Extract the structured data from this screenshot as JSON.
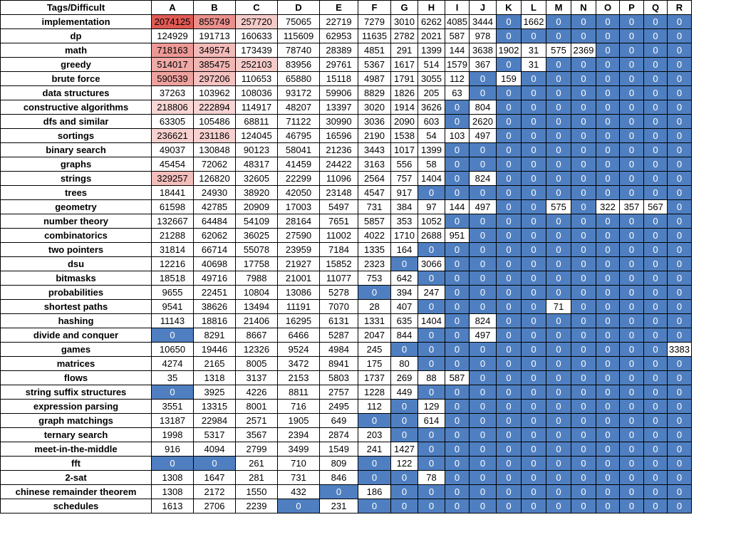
{
  "chart_data": {
    "type": "heatmap",
    "corner_header": "Tags/Difficult",
    "columns": [
      "A",
      "B",
      "C",
      "D",
      "E",
      "F",
      "G",
      "H",
      "I",
      "J",
      "K",
      "L",
      "M",
      "N",
      "O",
      "P",
      "Q",
      "R"
    ],
    "rows": [
      {
        "tag": "implementation",
        "values": [
          2074125,
          855749,
          257720,
          75065,
          22719,
          7279,
          3010,
          6262,
          4085,
          3444,
          0,
          1662,
          0,
          0,
          0,
          0,
          0,
          0
        ]
      },
      {
        "tag": "dp",
        "values": [
          124929,
          191713,
          160633,
          115609,
          62953,
          11635,
          2782,
          2021,
          587,
          978,
          0,
          0,
          0,
          0,
          0,
          0,
          0,
          0
        ]
      },
      {
        "tag": "math",
        "values": [
          718163,
          349574,
          173439,
          78740,
          28389,
          4851,
          291,
          1399,
          144,
          3638,
          1902,
          31,
          575,
          2369,
          0,
          0,
          0,
          0
        ]
      },
      {
        "tag": "greedy",
        "values": [
          514017,
          385475,
          252103,
          83956,
          29761,
          5367,
          1617,
          514,
          1579,
          367,
          0,
          31,
          0,
          0,
          0,
          0,
          0,
          0
        ]
      },
      {
        "tag": "brute force",
        "values": [
          590539,
          297206,
          110653,
          65880,
          15118,
          4987,
          1791,
          3055,
          112,
          0,
          159,
          0,
          0,
          0,
          0,
          0,
          0,
          0
        ]
      },
      {
        "tag": "data structures",
        "values": [
          37263,
          103962,
          108036,
          93172,
          59906,
          8829,
          1826,
          205,
          63,
          0,
          0,
          0,
          0,
          0,
          0,
          0,
          0,
          0
        ]
      },
      {
        "tag": "constructive algorithms",
        "values": [
          218806,
          222894,
          114917,
          48207,
          13397,
          3020,
          1914,
          3626,
          0,
          804,
          0,
          0,
          0,
          0,
          0,
          0,
          0,
          0
        ]
      },
      {
        "tag": "dfs and similar",
        "values": [
          63305,
          105486,
          68811,
          71122,
          30990,
          3036,
          2090,
          603,
          0,
          2620,
          0,
          0,
          0,
          0,
          0,
          0,
          0,
          0
        ]
      },
      {
        "tag": "sortings",
        "values": [
          236621,
          231186,
          124045,
          46795,
          16596,
          2190,
          1538,
          54,
          103,
          497,
          0,
          0,
          0,
          0,
          0,
          0,
          0,
          0
        ]
      },
      {
        "tag": "binary search",
        "values": [
          49037,
          130848,
          90123,
          58041,
          21236,
          3443,
          1017,
          1399,
          0,
          0,
          0,
          0,
          0,
          0,
          0,
          0,
          0,
          0
        ]
      },
      {
        "tag": "graphs",
        "values": [
          45454,
          72062,
          48317,
          41459,
          24422,
          3163,
          556,
          58,
          0,
          0,
          0,
          0,
          0,
          0,
          0,
          0,
          0,
          0
        ]
      },
      {
        "tag": "strings",
        "values": [
          329257,
          126820,
          32605,
          22299,
          11096,
          2564,
          757,
          1404,
          0,
          824,
          0,
          0,
          0,
          0,
          0,
          0,
          0,
          0
        ]
      },
      {
        "tag": "trees",
        "values": [
          18441,
          24930,
          38920,
          42050,
          23148,
          4547,
          917,
          0,
          0,
          0,
          0,
          0,
          0,
          0,
          0,
          0,
          0,
          0
        ]
      },
      {
        "tag": "geometry",
        "values": [
          61598,
          42785,
          20909,
          17003,
          5497,
          731,
          384,
          97,
          144,
          497,
          0,
          0,
          575,
          0,
          322,
          357,
          567,
          0
        ]
      },
      {
        "tag": "number theory",
        "values": [
          132667,
          64484,
          54109,
          28164,
          7651,
          5857,
          353,
          1052,
          0,
          0,
          0,
          0,
          0,
          0,
          0,
          0,
          0,
          0
        ]
      },
      {
        "tag": "combinatorics",
        "values": [
          21288,
          62062,
          36025,
          27590,
          11002,
          4022,
          1710,
          2688,
          951,
          0,
          0,
          0,
          0,
          0,
          0,
          0,
          0,
          0
        ]
      },
      {
        "tag": "two pointers",
        "values": [
          31814,
          66714,
          55078,
          23959,
          7184,
          1335,
          164,
          0,
          0,
          0,
          0,
          0,
          0,
          0,
          0,
          0,
          0,
          0
        ]
      },
      {
        "tag": "dsu",
        "values": [
          12216,
          40698,
          17758,
          21927,
          15852,
          2323,
          0,
          3066,
          0,
          0,
          0,
          0,
          0,
          0,
          0,
          0,
          0,
          0
        ]
      },
      {
        "tag": "bitmasks",
        "values": [
          18518,
          49716,
          7988,
          21001,
          11077,
          753,
          642,
          0,
          0,
          0,
          0,
          0,
          0,
          0,
          0,
          0,
          0,
          0
        ]
      },
      {
        "tag": "probabilities",
        "values": [
          9655,
          22451,
          10804,
          13086,
          5278,
          0,
          394,
          247,
          0,
          0,
          0,
          0,
          0,
          0,
          0,
          0,
          0,
          0
        ]
      },
      {
        "tag": "shortest paths",
        "values": [
          9541,
          38626,
          13494,
          11191,
          7070,
          28,
          407,
          0,
          0,
          0,
          0,
          0,
          71,
          0,
          0,
          0,
          0,
          0
        ]
      },
      {
        "tag": "hashing",
        "values": [
          11143,
          18816,
          21406,
          16295,
          6131,
          1331,
          635,
          1404,
          0,
          824,
          0,
          0,
          0,
          0,
          0,
          0,
          0,
          0
        ]
      },
      {
        "tag": "divide and conquer",
        "values": [
          0,
          8291,
          8667,
          6466,
          5287,
          2047,
          844,
          0,
          0,
          497,
          0,
          0,
          0,
          0,
          0,
          0,
          0,
          0
        ]
      },
      {
        "tag": "games",
        "values": [
          10650,
          19446,
          12326,
          9524,
          4984,
          245,
          0,
          0,
          0,
          0,
          0,
          0,
          0,
          0,
          0,
          0,
          0,
          3383
        ]
      },
      {
        "tag": "matrices",
        "values": [
          4274,
          2165,
          8005,
          3472,
          8941,
          175,
          80,
          0,
          0,
          0,
          0,
          0,
          0,
          0,
          0,
          0,
          0,
          0
        ]
      },
      {
        "tag": "flows",
        "values": [
          35,
          1318,
          3137,
          2153,
          5803,
          1737,
          269,
          88,
          587,
          0,
          0,
          0,
          0,
          0,
          0,
          0,
          0,
          0
        ]
      },
      {
        "tag": "string suffix structures",
        "values": [
          0,
          3925,
          4226,
          8811,
          2757,
          1228,
          449,
          0,
          0,
          0,
          0,
          0,
          0,
          0,
          0,
          0,
          0,
          0
        ]
      },
      {
        "tag": "expression parsing",
        "values": [
          3551,
          13315,
          8001,
          716,
          2495,
          112,
          0,
          129,
          0,
          0,
          0,
          0,
          0,
          0,
          0,
          0,
          0,
          0
        ]
      },
      {
        "tag": "graph matchings",
        "values": [
          13187,
          22984,
          2571,
          1905,
          649,
          0,
          0,
          614,
          0,
          0,
          0,
          0,
          0,
          0,
          0,
          0,
          0,
          0
        ]
      },
      {
        "tag": "ternary search",
        "values": [
          1998,
          5317,
          3567,
          2394,
          2874,
          203,
          0,
          0,
          0,
          0,
          0,
          0,
          0,
          0,
          0,
          0,
          0,
          0
        ]
      },
      {
        "tag": "meet-in-the-middle",
        "values": [
          916,
          4094,
          2799,
          3499,
          1549,
          241,
          1427,
          0,
          0,
          0,
          0,
          0,
          0,
          0,
          0,
          0,
          0,
          0
        ]
      },
      {
        "tag": "fft",
        "values": [
          0,
          0,
          261,
          710,
          809,
          0,
          122,
          0,
          0,
          0,
          0,
          0,
          0,
          0,
          0,
          0,
          0,
          0
        ]
      },
      {
        "tag": "2-sat",
        "values": [
          1308,
          1647,
          281,
          731,
          846,
          0,
          0,
          78,
          0,
          0,
          0,
          0,
          0,
          0,
          0,
          0,
          0,
          0
        ]
      },
      {
        "tag": "chinese remainder theorem",
        "values": [
          1308,
          2172,
          1550,
          432,
          0,
          186,
          0,
          0,
          0,
          0,
          0,
          0,
          0,
          0,
          0,
          0,
          0,
          0
        ]
      },
      {
        "tag": "schedules",
        "values": [
          1613,
          2706,
          2239,
          0,
          231,
          0,
          0,
          0,
          0,
          0,
          0,
          0,
          0,
          0,
          0,
          0,
          0,
          0
        ]
      }
    ],
    "colors": {
      "zero_fill": "#4f7fc0",
      "zero_text": "#ffffff",
      "high_fill_max": "#e05a55",
      "high_fill_min": "#fbe9e8",
      "default_fill": "#ffffff"
    },
    "highlight_threshold": 200000,
    "highlight_max": 2074125
  }
}
